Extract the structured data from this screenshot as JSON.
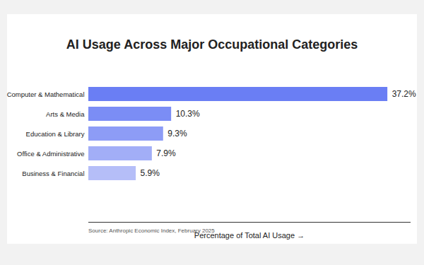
{
  "chart_data": {
    "type": "bar",
    "orientation": "horizontal",
    "title": "AI Usage Across Major Occupational Categories",
    "x_label": "Percentage of Total AI Usage",
    "caption": "Source: Anthropic Economic Index, February 2025",
    "categories": [
      "Computer & Mathematical",
      "Arts & Media",
      "Education & Library",
      "Office & Administrative",
      "Business & Financial"
    ],
    "values": [
      37.2,
      10.3,
      9.3,
      7.9,
      5.9
    ],
    "value_labels": [
      "37.2%",
      "10.3%",
      "9.3%",
      "7.9%",
      "5.9%"
    ],
    "data_labels": true,
    "colors": [
      "#6a7ef4",
      "#7b8df5",
      "#8d9cf6",
      "#a2aef7",
      "#b5bef8"
    ],
    "xlim": [
      0,
      40
    ],
    "tick_labels": "y",
    "grid": false
  }
}
